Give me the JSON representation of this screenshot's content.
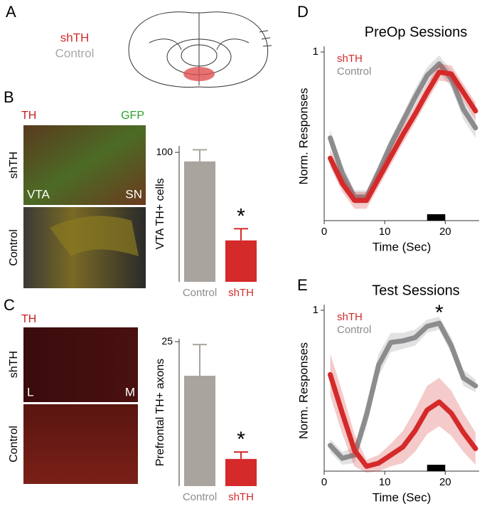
{
  "panel_labels": [
    "A",
    "B",
    "C",
    "D",
    "E"
  ],
  "panel_a": {
    "legend": [
      {
        "name": "shTH",
        "color": "#d42a2a"
      },
      {
        "name": "Control",
        "color": "#a8a8aa"
      }
    ]
  },
  "micrographs": {
    "b": {
      "stain_labels": [
        "TH",
        "GFP"
      ],
      "row_labels": [
        "shTH",
        "Control"
      ],
      "region_labels": [
        "VTA",
        "SN"
      ]
    },
    "c": {
      "stain_labels": [
        "TH"
      ],
      "row_labels": [
        "shTH",
        "Control"
      ],
      "region_labels": [
        "L",
        "M"
      ]
    }
  },
  "chart_data": [
    {
      "type": "bar",
      "ylabel": "VTA TH+ cells",
      "categories": [
        "Control",
        "shTH"
      ],
      "category_colors": [
        "#8c8c8e",
        "#d42a2a"
      ],
      "values": [
        93,
        32
      ],
      "errors": [
        9,
        9
      ],
      "colors": [
        "#aaa49e",
        "#d42a2a"
      ],
      "ylim": [
        0,
        105
      ],
      "yticks": [
        100
      ],
      "annotation": "*"
    },
    {
      "type": "bar",
      "ylabel": "Prefrontal TH+ axons",
      "categories": [
        "Control",
        "shTH"
      ],
      "category_colors": [
        "#8c8c8e",
        "#d42a2a"
      ],
      "values": [
        19.1,
        4.7
      ],
      "errors": [
        5.4,
        1.2
      ],
      "colors": [
        "#aaa49e",
        "#d42a2a"
      ],
      "ylim": [
        0,
        25.5
      ],
      "yticks": [
        25
      ],
      "annotation": "*"
    },
    {
      "type": "line",
      "title": "PreOp Sessions",
      "xlabel": "Time (Sec)",
      "ylabel": "Norm. Responses",
      "x": [
        1,
        3,
        5,
        7,
        9,
        11,
        13,
        15,
        17,
        19,
        21,
        23,
        25
      ],
      "xlim": [
        0,
        25.6
      ],
      "xticks": [
        0,
        10,
        20
      ],
      "ylim": [
        0,
        1
      ],
      "yticks": [
        1
      ],
      "stimulus": [
        17,
        20
      ],
      "series": [
        {
          "name": "shTH",
          "color": "#d42a2a",
          "values": [
            0.37,
            0.22,
            0.12,
            0.12,
            0.25,
            0.38,
            0.51,
            0.63,
            0.76,
            0.88,
            0.87,
            0.76,
            0.65
          ],
          "errors": [
            0.05,
            0.05,
            0.05,
            0.05,
            0.05,
            0.05,
            0.05,
            0.05,
            0.05,
            0.05,
            0.05,
            0.05,
            0.05
          ]
        },
        {
          "name": "Control",
          "color": "#8c8c8e",
          "values": [
            0.49,
            0.28,
            0.14,
            0.14,
            0.29,
            0.45,
            0.59,
            0.73,
            0.86,
            0.93,
            0.84,
            0.66,
            0.55
          ],
          "errors": [
            0.05,
            0.05,
            0.04,
            0.04,
            0.04,
            0.04,
            0.04,
            0.05,
            0.05,
            0.05,
            0.05,
            0.06,
            0.06
          ]
        }
      ]
    },
    {
      "type": "line",
      "title": "Test Sessions",
      "xlabel": "Time (Sec)",
      "ylabel": "Norm. Responses",
      "annotation": "*",
      "x": [
        1,
        3,
        5,
        7,
        9,
        11,
        13,
        15,
        17,
        19,
        21,
        23,
        25
      ],
      "xlim": [
        0,
        25.6
      ],
      "xticks": [
        0,
        10,
        20
      ],
      "ylim": [
        0,
        1
      ],
      "yticks": [
        1
      ],
      "stimulus": [
        17,
        20
      ],
      "series": [
        {
          "name": "shTH",
          "color": "#d42a2a",
          "values": [
            0.6,
            0.36,
            0.13,
            0.03,
            0.05,
            0.1,
            0.15,
            0.25,
            0.38,
            0.43,
            0.36,
            0.24,
            0.14
          ],
          "errors": [
            0.13,
            0.13,
            0.1,
            0.04,
            0.05,
            0.07,
            0.1,
            0.13,
            0.15,
            0.15,
            0.14,
            0.12,
            0.1
          ]
        },
        {
          "name": "Control",
          "color": "#8c8c8e",
          "values": [
            0.16,
            0.08,
            0.1,
            0.35,
            0.66,
            0.8,
            0.81,
            0.83,
            0.9,
            0.92,
            0.78,
            0.58,
            0.53
          ],
          "errors": [
            0.04,
            0.04,
            0.05,
            0.07,
            0.07,
            0.06,
            0.05,
            0.05,
            0.04,
            0.04,
            0.05,
            0.05,
            0.04
          ]
        }
      ]
    }
  ]
}
